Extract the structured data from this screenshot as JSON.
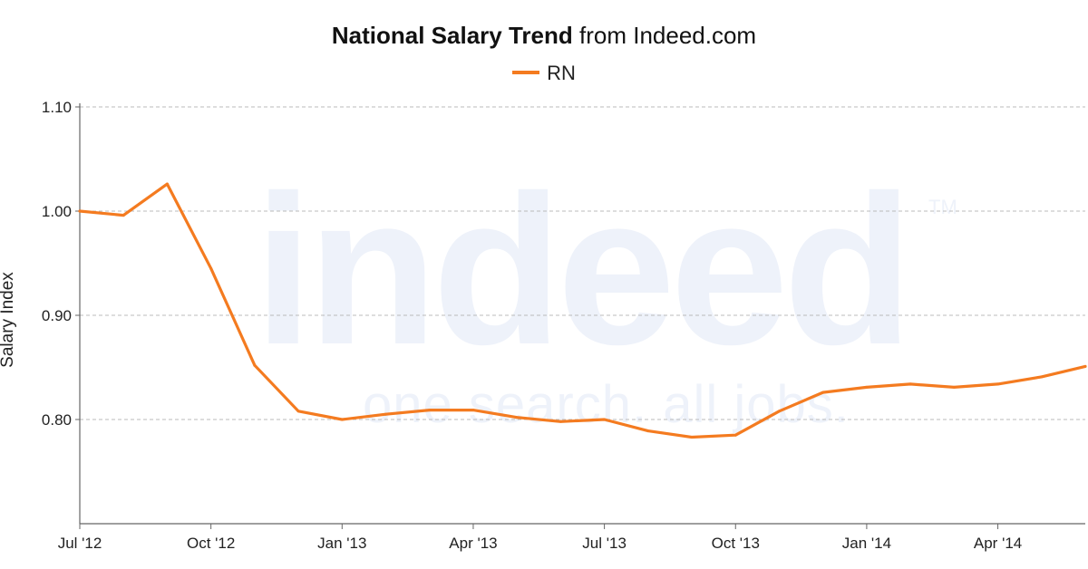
{
  "title": {
    "bold": "National Salary Trend",
    "rest": "from Indeed.com"
  },
  "legend": {
    "label": "RN",
    "color": "#f47b20"
  },
  "watermark": {
    "brand": "indeed",
    "tagline": "one search. all jobs.",
    "tm": "TM"
  },
  "colors": {
    "line": "#f47b20",
    "grid": "#bbbbbb",
    "axis": "#666666",
    "watermark": "#eef2fa"
  },
  "chart_data": {
    "type": "line",
    "title": "National Salary Trend from Indeed.com",
    "xlabel": "",
    "ylabel": "Salary Index",
    "ylim": [
      0.7,
      1.1
    ],
    "yticks": [
      0.8,
      0.9,
      1.0,
      1.1
    ],
    "yticklabels": [
      "0.80",
      "0.90",
      "1.00",
      "1.10"
    ],
    "xlim": [
      "2012-07",
      "2014-06"
    ],
    "xticks": [
      "2012-07",
      "2012-10",
      "2013-01",
      "2013-04",
      "2013-07",
      "2013-10",
      "2014-01",
      "2014-04"
    ],
    "xticklabels": [
      "Jul '12",
      "Oct '12",
      "Jan '13",
      "Apr '13",
      "Jul '13",
      "Oct '13",
      "Jan '14",
      "Apr '14"
    ],
    "grid": true,
    "legend_position": "top-center",
    "series": [
      {
        "name": "RN",
        "x": [
          "2012-07",
          "2012-08",
          "2012-09",
          "2012-10",
          "2012-11",
          "2012-12",
          "2013-01",
          "2013-02",
          "2013-03",
          "2013-04",
          "2013-05",
          "2013-06",
          "2013-07",
          "2013-08",
          "2013-09",
          "2013-10",
          "2013-11",
          "2013-12",
          "2014-01",
          "2014-02",
          "2014-03",
          "2014-04",
          "2014-05",
          "2014-06"
        ],
        "values": [
          1.0,
          0.996,
          1.026,
          0.945,
          0.852,
          0.808,
          0.8,
          0.805,
          0.809,
          0.809,
          0.802,
          0.798,
          0.8,
          0.789,
          0.783,
          0.785,
          0.808,
          0.826,
          0.831,
          0.834,
          0.831,
          0.834,
          0.841,
          0.851
        ]
      }
    ]
  }
}
